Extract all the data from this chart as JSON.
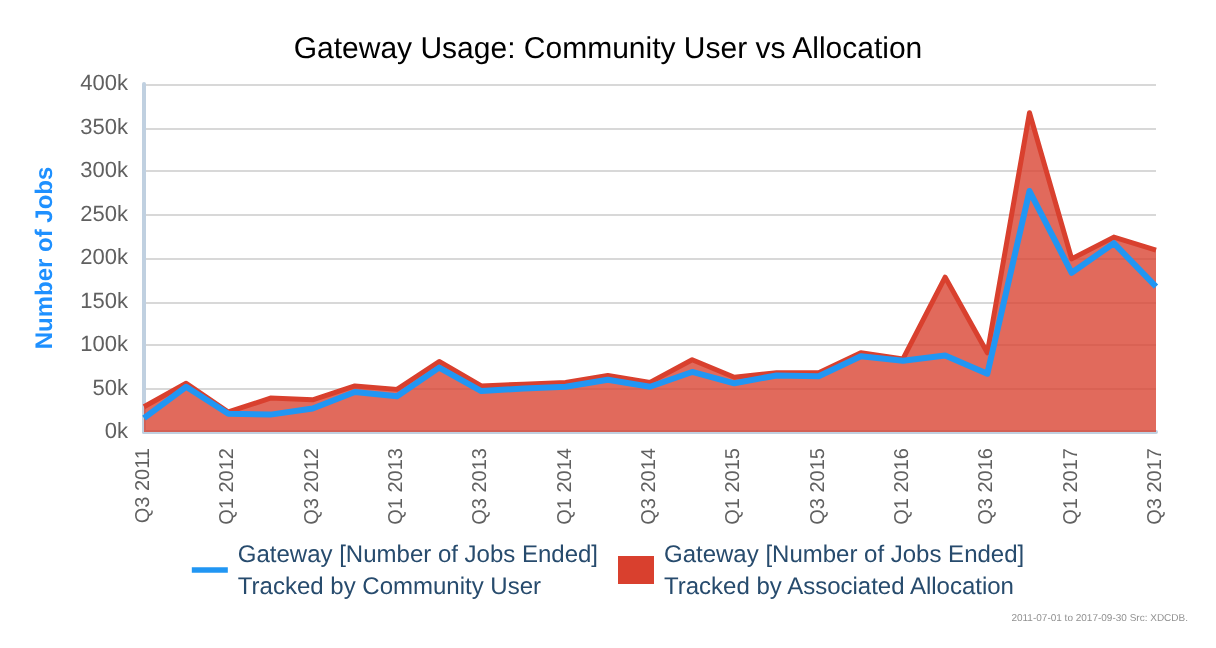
{
  "chart_data": {
    "type": "area",
    "title": "Gateway Usage: Community User vs Allocation",
    "ylabel": "Number of Jobs",
    "categories": [
      "Q3 2011",
      null,
      "Q1 2012",
      null,
      "Q3 2012",
      null,
      "Q1 2013",
      null,
      "Q3 2013",
      null,
      "Q1 2014",
      null,
      "Q3 2014",
      null,
      "Q1 2015",
      null,
      "Q3 2015",
      null,
      "Q1 2016",
      null,
      "Q3 2016",
      null,
      "Q1 2017",
      null,
      "Q3 2017"
    ],
    "series": [
      {
        "name": "Gateway [Number of Jobs Ended]\nTracked by Community User",
        "type": "line",
        "color": "#2196f3",
        "values": [
          16000,
          52000,
          21000,
          20000,
          27000,
          46000,
          41000,
          74000,
          47000,
          50000,
          52000,
          60000,
          52000,
          69000,
          56000,
          65000,
          64000,
          87000,
          82000,
          88000,
          67000,
          277000,
          183000,
          217000,
          167000
        ]
      },
      {
        "name": "Gateway [Number of Jobs Ended]\nTracked by Associated Allocation",
        "color": "#d9402e",
        "values": [
          29000,
          56000,
          23000,
          39000,
          37000,
          53000,
          49000,
          81000,
          53000,
          55000,
          57000,
          65000,
          57000,
          83000,
          63000,
          68000,
          68000,
          91000,
          84000,
          178000,
          91000,
          367000,
          199000,
          224000,
          209000
        ]
      }
    ],
    "ylim": [
      0,
      400000
    ],
    "yticks": [
      {
        "value": 0,
        "label": "0k"
      },
      {
        "value": 50000,
        "label": "50k"
      },
      {
        "value": 100000,
        "label": "100k"
      },
      {
        "value": 150000,
        "label": "150k"
      },
      {
        "value": 200000,
        "label": "200k"
      },
      {
        "value": 250000,
        "label": "250k"
      },
      {
        "value": 300000,
        "label": "300k"
      },
      {
        "value": 350000,
        "label": "350k"
      },
      {
        "value": 400000,
        "label": "400k"
      }
    ],
    "grid": "y",
    "legend": "bottom",
    "marker": "none",
    "line_style": "solid",
    "annotations": [
      "2011-07-01 to 2017-09-30 Src: XDCDB."
    ]
  }
}
